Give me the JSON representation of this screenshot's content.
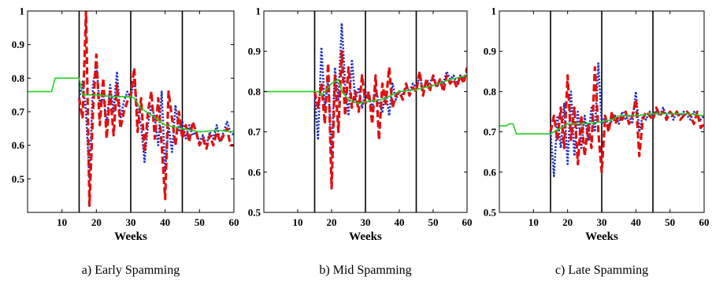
{
  "chart_data": [
    {
      "type": "line",
      "caption": "a) Early Spamming",
      "xlabel": "Weeks",
      "ylabel": "",
      "xlim": [
        0,
        60
      ],
      "ylim": [
        0.4,
        1.0
      ],
      "xticks": [
        "10",
        "20",
        "30",
        "40",
        "50",
        "60"
      ],
      "xtick_values": [
        10,
        20,
        30,
        40,
        50,
        60
      ],
      "yticks": [
        "0.5",
        "0.6",
        "0.7",
        "0.8",
        "0.9",
        "1"
      ],
      "ytick_values": [
        0.5,
        0.6,
        0.7,
        0.8,
        0.9,
        1.0
      ],
      "vlines": [
        15,
        30,
        45
      ],
      "series": [
        {
          "color": "#22cc22",
          "dash": "solid",
          "x": [
            0,
            7,
            8,
            15,
            16,
            20,
            25,
            30,
            31,
            33,
            36,
            40,
            45,
            50,
            55,
            60
          ],
          "y": [
            0.76,
            0.76,
            0.8,
            0.8,
            0.75,
            0.75,
            0.745,
            0.745,
            0.74,
            0.71,
            0.69,
            0.66,
            0.65,
            0.64,
            0.645,
            0.64
          ]
        },
        {
          "color": "#1f2fbf",
          "dash": "dotted",
          "x": [
            15,
            16,
            17,
            18,
            19,
            20,
            21,
            22,
            23,
            24,
            25,
            26,
            27,
            28,
            29,
            30,
            31,
            32,
            33,
            34,
            35,
            36,
            37,
            38,
            39,
            40,
            41,
            42,
            43,
            44,
            45,
            46,
            47,
            48,
            49,
            50,
            51,
            52,
            53,
            54,
            55,
            56,
            57,
            58,
            59,
            60
          ],
          "y": [
            0.74,
            0.79,
            0.7,
            0.5,
            0.78,
            0.84,
            0.72,
            0.75,
            0.66,
            0.78,
            0.7,
            0.82,
            0.68,
            0.73,
            0.76,
            0.74,
            0.8,
            0.7,
            0.66,
            0.55,
            0.66,
            0.72,
            0.68,
            0.6,
            0.76,
            0.52,
            0.66,
            0.58,
            0.72,
            0.64,
            0.67,
            0.62,
            0.66,
            0.63,
            0.64,
            0.61,
            0.63,
            0.6,
            0.64,
            0.62,
            0.66,
            0.61,
            0.64,
            0.67,
            0.64,
            0.63
          ]
        },
        {
          "color": "#e01010",
          "dash": "dashed",
          "x": [
            15,
            16,
            17,
            18,
            19,
            20,
            21,
            22,
            23,
            24,
            25,
            26,
            27,
            28,
            29,
            30,
            31,
            32,
            33,
            34,
            35,
            36,
            37,
            38,
            39,
            40,
            41,
            42,
            43,
            44,
            45,
            46,
            47,
            48,
            49,
            50,
            51,
            52,
            53,
            54,
            55,
            56,
            57,
            58,
            59,
            60
          ],
          "y": [
            0.74,
            0.68,
            1.0,
            0.42,
            0.7,
            0.87,
            0.66,
            0.8,
            0.62,
            0.76,
            0.63,
            0.78,
            0.65,
            0.7,
            0.73,
            0.75,
            0.83,
            0.64,
            0.74,
            0.58,
            0.7,
            0.76,
            0.62,
            0.74,
            0.6,
            0.44,
            0.76,
            0.68,
            0.6,
            0.7,
            0.62,
            0.66,
            0.61,
            0.67,
            0.64,
            0.6,
            0.62,
            0.59,
            0.63,
            0.6,
            0.64,
            0.61,
            0.63,
            0.65,
            0.6,
            0.6
          ]
        }
      ]
    },
    {
      "type": "line",
      "caption": "b) Mid Spamming",
      "xlabel": "Weeks",
      "ylabel": "",
      "xlim": [
        0,
        60
      ],
      "ylim": [
        0.5,
        1.0
      ],
      "xticks": [
        "10",
        "20",
        "30",
        "40",
        "50",
        "60"
      ],
      "xtick_values": [
        10,
        20,
        30,
        40,
        50,
        60
      ],
      "yticks": [
        "0.5",
        "0.6",
        "0.7",
        "0.8",
        "0.9",
        "1"
      ],
      "ytick_values": [
        0.5,
        0.6,
        0.7,
        0.8,
        0.9,
        1.0
      ],
      "vlines": [
        15,
        30,
        45
      ],
      "series": [
        {
          "color": "#22cc22",
          "dash": "solid",
          "x": [
            0,
            15,
            16,
            17,
            18,
            19,
            20,
            22,
            23,
            25,
            28,
            30,
            35,
            40,
            45,
            50,
            55,
            60
          ],
          "y": [
            0.8,
            0.8,
            0.8,
            0.79,
            0.8,
            0.81,
            0.82,
            0.83,
            0.8,
            0.78,
            0.77,
            0.775,
            0.78,
            0.8,
            0.805,
            0.815,
            0.83,
            0.84
          ]
        },
        {
          "color": "#1f2fbf",
          "dash": "dotted",
          "x": [
            15,
            16,
            17,
            18,
            19,
            20,
            21,
            22,
            23,
            24,
            25,
            26,
            27,
            28,
            29,
            30,
            31,
            32,
            33,
            34,
            35,
            36,
            37,
            38,
            39,
            40,
            41,
            42,
            43,
            44,
            45,
            46,
            47,
            48,
            49,
            50,
            51,
            52,
            53,
            54,
            55,
            56,
            57,
            58,
            59,
            60
          ],
          "y": [
            0.8,
            0.68,
            0.91,
            0.76,
            0.83,
            0.64,
            0.86,
            0.78,
            0.97,
            0.82,
            0.74,
            0.88,
            0.78,
            0.81,
            0.76,
            0.8,
            0.78,
            0.76,
            0.81,
            0.77,
            0.75,
            0.8,
            0.74,
            0.82,
            0.78,
            0.8,
            0.79,
            0.81,
            0.8,
            0.82,
            0.81,
            0.84,
            0.8,
            0.83,
            0.82,
            0.84,
            0.81,
            0.83,
            0.82,
            0.85,
            0.83,
            0.84,
            0.82,
            0.84,
            0.83,
            0.85
          ]
        },
        {
          "color": "#e01010",
          "dash": "dashed",
          "x": [
            15,
            16,
            17,
            18,
            19,
            20,
            21,
            22,
            23,
            24,
            25,
            26,
            27,
            28,
            29,
            30,
            31,
            32,
            33,
            34,
            35,
            36,
            37,
            38,
            39,
            40,
            41,
            42,
            43,
            44,
            45,
            46,
            47,
            48,
            49,
            50,
            51,
            52,
            53,
            54,
            55,
            56,
            57,
            58,
            59,
            60
          ],
          "y": [
            0.8,
            0.76,
            0.82,
            0.72,
            0.87,
            0.56,
            0.84,
            0.7,
            0.9,
            0.74,
            0.86,
            0.76,
            0.8,
            0.75,
            0.84,
            0.77,
            0.8,
            0.72,
            0.84,
            0.68,
            0.82,
            0.77,
            0.86,
            0.76,
            0.79,
            0.8,
            0.78,
            0.82,
            0.79,
            0.81,
            0.8,
            0.85,
            0.79,
            0.83,
            0.8,
            0.84,
            0.81,
            0.83,
            0.8,
            0.84,
            0.82,
            0.83,
            0.81,
            0.84,
            0.82,
            0.86
          ]
        }
      ]
    },
    {
      "type": "line",
      "caption": "c) Late Spamming",
      "xlabel": "Weeks",
      "ylabel": "",
      "xlim": [
        0,
        60
      ],
      "ylim": [
        0.5,
        1.0
      ],
      "xticks": [
        "10",
        "20",
        "30",
        "40",
        "50",
        "60"
      ],
      "xtick_values": [
        10,
        20,
        30,
        40,
        50,
        60
      ],
      "yticks": [
        "0.5",
        "0.6",
        "0.7",
        "0.8",
        "0.9",
        "1"
      ],
      "ytick_values": [
        0.5,
        0.6,
        0.7,
        0.8,
        0.9,
        1.0
      ],
      "vlines": [
        15,
        30,
        45
      ],
      "series": [
        {
          "color": "#22cc22",
          "dash": "solid",
          "x": [
            0,
            2,
            3,
            4,
            5,
            15,
            16,
            18,
            20,
            25,
            30,
            33,
            35,
            40,
            45,
            50,
            55,
            60
          ],
          "y": [
            0.715,
            0.715,
            0.72,
            0.72,
            0.695,
            0.695,
            0.7,
            0.71,
            0.72,
            0.72,
            0.725,
            0.73,
            0.74,
            0.74,
            0.745,
            0.745,
            0.745,
            0.74
          ]
        },
        {
          "color": "#1f2fbf",
          "dash": "dotted",
          "x": [
            15,
            16,
            17,
            18,
            19,
            20,
            21,
            22,
            23,
            24,
            25,
            26,
            27,
            28,
            29,
            30,
            31,
            32,
            33,
            34,
            35,
            36,
            37,
            38,
            39,
            40,
            41,
            42,
            43,
            44,
            45,
            46,
            47,
            48,
            49,
            50,
            51,
            52,
            53,
            54,
            55,
            56,
            57,
            58,
            59,
            60
          ],
          "y": [
            0.7,
            0.59,
            0.74,
            0.66,
            0.77,
            0.62,
            0.8,
            0.64,
            0.75,
            0.66,
            0.74,
            0.68,
            0.76,
            0.7,
            0.87,
            0.72,
            0.74,
            0.71,
            0.73,
            0.74,
            0.72,
            0.75,
            0.73,
            0.74,
            0.72,
            0.8,
            0.7,
            0.74,
            0.73,
            0.75,
            0.74,
            0.75,
            0.74,
            0.76,
            0.74,
            0.75,
            0.73,
            0.75,
            0.74,
            0.75,
            0.74,
            0.73,
            0.75,
            0.74,
            0.73,
            0.74
          ]
        },
        {
          "color": "#e01010",
          "dash": "dashed",
          "x": [
            15,
            16,
            17,
            18,
            19,
            20,
            21,
            22,
            23,
            24,
            25,
            26,
            27,
            28,
            29,
            30,
            31,
            32,
            33,
            34,
            35,
            36,
            37,
            38,
            39,
            40,
            41,
            42,
            43,
            44,
            45,
            46,
            47,
            48,
            49,
            50,
            51,
            52,
            53,
            54,
            55,
            56,
            57,
            58,
            59,
            60
          ],
          "y": [
            0.7,
            0.74,
            0.68,
            0.76,
            0.66,
            0.84,
            0.68,
            0.76,
            0.62,
            0.74,
            0.64,
            0.72,
            0.66,
            0.86,
            0.7,
            0.6,
            0.74,
            0.7,
            0.75,
            0.72,
            0.74,
            0.73,
            0.75,
            0.72,
            0.74,
            0.78,
            0.64,
            0.73,
            0.75,
            0.74,
            0.73,
            0.76,
            0.74,
            0.75,
            0.73,
            0.75,
            0.74,
            0.75,
            0.73,
            0.74,
            0.75,
            0.74,
            0.72,
            0.75,
            0.71,
            0.72
          ]
        }
      ]
    }
  ]
}
